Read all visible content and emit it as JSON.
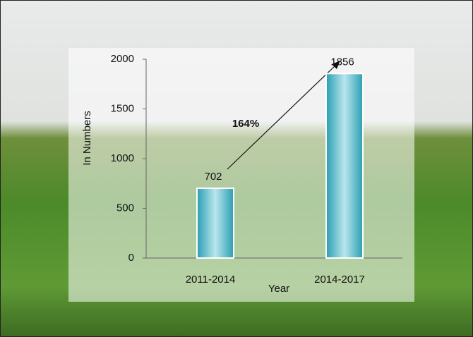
{
  "chart_data": {
    "type": "bar",
    "categories": [
      "2011-2014",
      "2014-2017"
    ],
    "values": [
      702,
      1856
    ],
    "color": "#2aa6b8",
    "xlabel": "Year",
    "ylabel": "In Numbers",
    "annotation": "164%",
    "ylim": [
      0,
      2000
    ],
    "yticks": [
      0,
      500,
      1000,
      1500,
      2000
    ]
  }
}
